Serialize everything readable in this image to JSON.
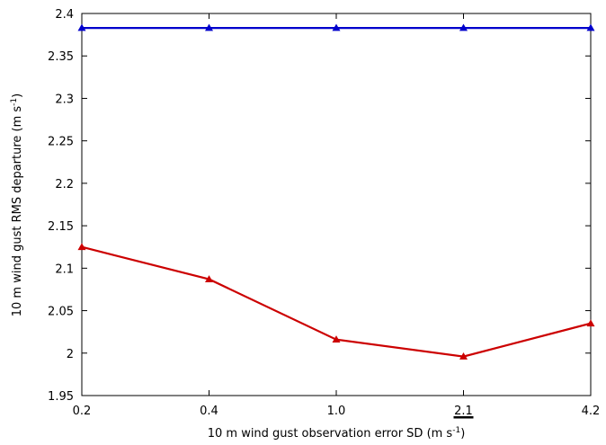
{
  "chart_data": {
    "type": "line",
    "xlabel": {
      "prefix": "10 m wind gust observation error SD (m s",
      "sup": "-1",
      "suffix": ")"
    },
    "ylabel": {
      "prefix": "10 m wind gust RMS departure (m s",
      "sup": "-1",
      "suffix": ")"
    },
    "categories": [
      "0.2",
      "0.4",
      "1.0",
      "2.1",
      "4.2"
    ],
    "highlighted_category": "2.1",
    "ylim": [
      1.95,
      2.4
    ],
    "yticks": [
      "1.95",
      "2",
      "2.05",
      "2.1",
      "2.15",
      "2.2",
      "2.25",
      "2.3",
      "2.35",
      "2.4"
    ],
    "grid": false,
    "series": [
      {
        "color": "#0000cc",
        "marker": "triangle",
        "values": [
          2.383,
          2.383,
          2.383,
          2.383,
          2.383
        ]
      },
      {
        "color": "#cc0000",
        "marker": "triangle",
        "values": [
          2.125,
          2.087,
          2.016,
          1.996,
          2.035
        ]
      }
    ]
  }
}
